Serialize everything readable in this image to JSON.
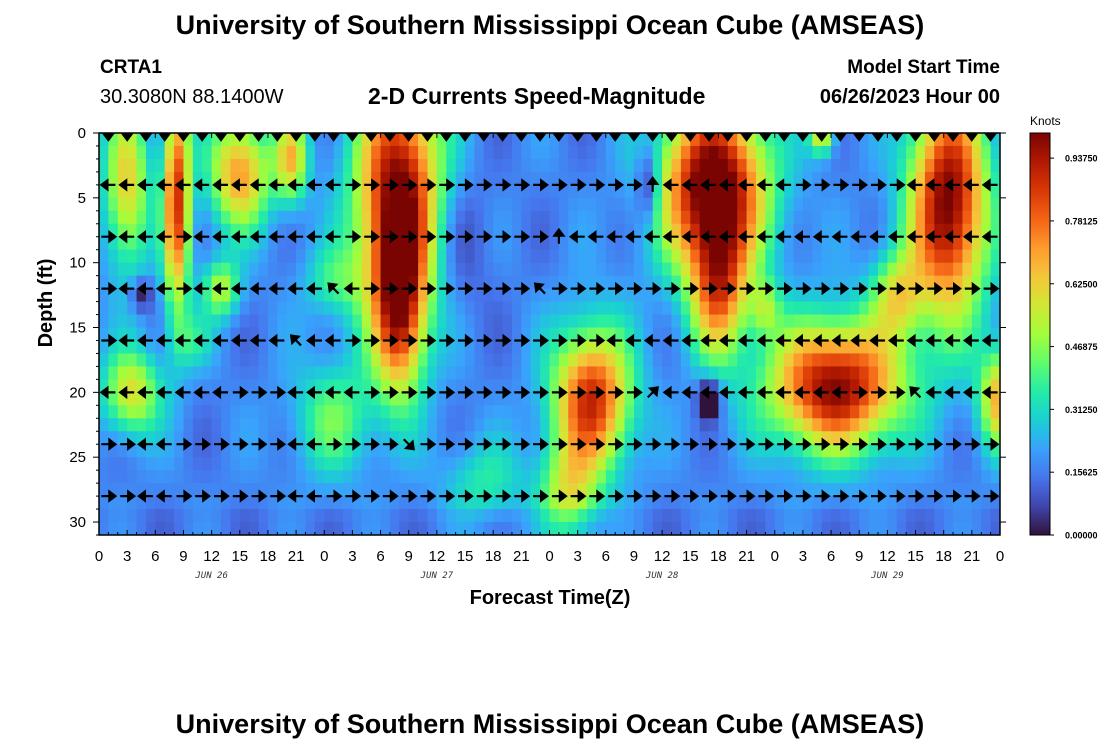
{
  "header": {
    "title": "University of Southern Mississippi Ocean Cube (AMSEAS)",
    "station": "CRTA1",
    "coords": "30.3080N  88.1400W",
    "subtitle": "2-D Currents Speed-Magnitude",
    "model_label": "Model Start Time",
    "model_date": "06/26/2023 Hour 00"
  },
  "footer": {
    "title": "University of Southern Mississippi Ocean Cube (AMSEAS)"
  },
  "chart_data": {
    "type": "heatmap",
    "title": "2-D Currents Speed-Magnitude",
    "xlabel": "Forecast Time(Z)",
    "ylabel": "Depth (ft)",
    "x_range_hours": [
      0,
      96
    ],
    "ylim": [
      0,
      31
    ],
    "y_inverted": true,
    "x_ticks_hours": [
      0,
      3,
      6,
      9,
      12,
      15,
      18,
      21,
      24,
      27,
      30,
      33,
      36,
      39,
      42,
      45,
      48,
      51,
      54,
      57,
      60,
      63,
      66,
      69,
      72,
      75,
      78,
      81,
      84,
      87,
      90,
      93,
      96
    ],
    "x_tick_labels": [
      "0",
      "3",
      "6",
      "9",
      "12",
      "15",
      "18",
      "21",
      "0",
      "3",
      "6",
      "9",
      "12",
      "15",
      "18",
      "21",
      "0",
      "3",
      "6",
      "9",
      "12",
      "15",
      "18",
      "21",
      "0",
      "3",
      "6",
      "9",
      "12",
      "15",
      "18",
      "21",
      "0"
    ],
    "y_ticks": [
      0,
      5,
      10,
      15,
      20,
      25,
      30
    ],
    "y_tick_labels": [
      "0",
      "5",
      "10",
      "15",
      "20",
      "25",
      "30"
    ],
    "day_labels": [
      {
        "hour": 12,
        "label": "JUN 26"
      },
      {
        "hour": 36,
        "label": "JUN 27"
      },
      {
        "hour": 60,
        "label": "JUN 28"
      },
      {
        "hour": 84,
        "label": "JUN 29"
      }
    ],
    "colorbar": {
      "title": "Knots",
      "min": 0,
      "max": 1.0,
      "ticks": [
        0.0,
        0.15625,
        0.3125,
        0.46875,
        0.625,
        0.78125,
        0.9375
      ],
      "tick_labels": [
        "0.00000",
        "0.15625",
        "0.31250",
        "0.46875",
        "0.62500",
        "0.78125",
        "0.93750"
      ],
      "colors": [
        "#30123b",
        "#4145ab",
        "#4675ed",
        "#39a2fc",
        "#1bcfd4",
        "#24eca6",
        "#61fc6c",
        "#a4fc3b",
        "#d1e834",
        "#f3c63a",
        "#fe9b2d",
        "#f36315",
        "#d93806",
        "#b11901",
        "#7a0402"
      ]
    },
    "depth_levels_ft": [
      0,
      4,
      8,
      12,
      16,
      20,
      24,
      28
    ],
    "vector_interval_hours": 2,
    "vector_directions": [
      "S S S S S S S S S S S S S S S S S S S S S S S S S S S S S S S S S S S S S S S S S S S S S S S S S S",
      "W W W W W W W W W W W W W E E E E E E E E E E E E E E E E N W W W W W W W E E E E E E W W W W W W",
      "E W W W E W W W W W W W W E E E E E E E E E E E N W W W W W W W W W W W W W W W W W W W W W W W",
      "E W W W E W W W W W W W NW W E E E E E E E E E NW E E E E E E E E E E E E E E E E E E E E E E E E",
      "E W W W W W W W W W NW W W E E E E E E E E E E E E E E W W W W W W W W W W W W W W W W W W W W W",
      "W W W W W W W E E E W W W W E E E E E E E E E E E E E E E NE W W W W W W W W W W E E E NW W W W W",
      "E E W W E E E E E E W W E E E E SE E E E E E E E E E E E E E E E E E E E E E E E E E E E E E E E E",
      "E E W W E E E E E E W W E E E E E E E E E E E E E E E E E E E E E E E E E E E E E E E E E E E E E"
    ]
  }
}
